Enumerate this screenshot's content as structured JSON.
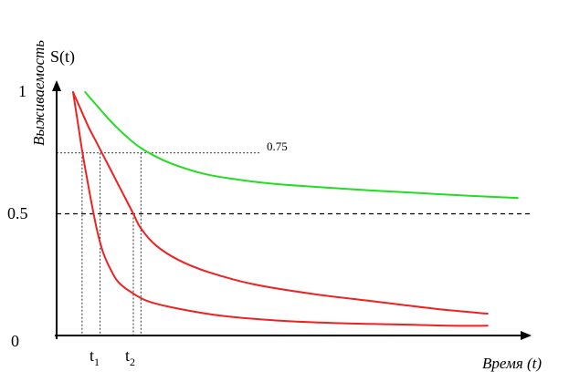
{
  "chart_data": {
    "type": "line",
    "ylabel": "S(t)",
    "ylabel_side": "Выживаемость",
    "xlabel": "Время (t)",
    "y_ticks": [
      {
        "value": 1,
        "label": "1"
      },
      {
        "value": 0.5,
        "label": "0.5"
      },
      {
        "value": 0,
        "label": "0"
      }
    ],
    "x_ticks": [
      {
        "label": "t",
        "sub": "1"
      },
      {
        "label": "t",
        "sub": "2"
      }
    ],
    "reference_lines": [
      {
        "y": 0.75,
        "label": "0.75",
        "style": "dotted"
      },
      {
        "y": 0.5,
        "label": "",
        "style": "dashed"
      }
    ],
    "series": [
      {
        "color": "#22dd22",
        "x": [
          0.08,
          0.15,
          0.25,
          0.35,
          0.45,
          0.6,
          0.75,
          0.9,
          1.1,
          1.3,
          1.5,
          1.75,
          2.0,
          2.3,
          2.6,
          2.95
        ],
        "y": [
          1.0,
          0.95,
          0.88,
          0.82,
          0.77,
          0.72,
          0.685,
          0.66,
          0.64,
          0.625,
          0.615,
          0.605,
          0.595,
          0.585,
          0.575,
          0.565
        ]
      },
      {
        "color": "#ee2222",
        "x": [
          0.0,
          0.05,
          0.1,
          0.15,
          0.2,
          0.25,
          0.3,
          0.35,
          0.4,
          0.45,
          0.55,
          0.7,
          0.9,
          1.2,
          1.6,
          2.0,
          2.4,
          2.75
        ],
        "y": [
          1.0,
          0.93,
          0.86,
          0.8,
          0.74,
          0.68,
          0.62,
          0.56,
          0.5,
          0.44,
          0.37,
          0.31,
          0.26,
          0.21,
          0.17,
          0.14,
          0.11,
          0.09
        ]
      },
      {
        "color": "#ee2222",
        "x": [
          0.0,
          0.03,
          0.06,
          0.1,
          0.13,
          0.16,
          0.2,
          0.25,
          0.3,
          0.38,
          0.5,
          0.7,
          1.0,
          1.4,
          1.8,
          2.2,
          2.5,
          2.75
        ],
        "y": [
          1.0,
          0.88,
          0.76,
          0.62,
          0.52,
          0.43,
          0.34,
          0.27,
          0.22,
          0.18,
          0.14,
          0.11,
          0.08,
          0.06,
          0.05,
          0.045,
          0.04,
          0.04
        ]
      }
    ],
    "guides": [
      {
        "x": 0.06,
        "y": 0.75
      },
      {
        "x": 0.18,
        "y": 0.75
      },
      {
        "x": 0.4,
        "y": 0.5
      },
      {
        "x": 0.45,
        "y": 0.75
      }
    ],
    "xlim": [
      -0.1,
      3.1
    ],
    "ylim": [
      0,
      1.1
    ],
    "grid": false,
    "legend": "none"
  }
}
